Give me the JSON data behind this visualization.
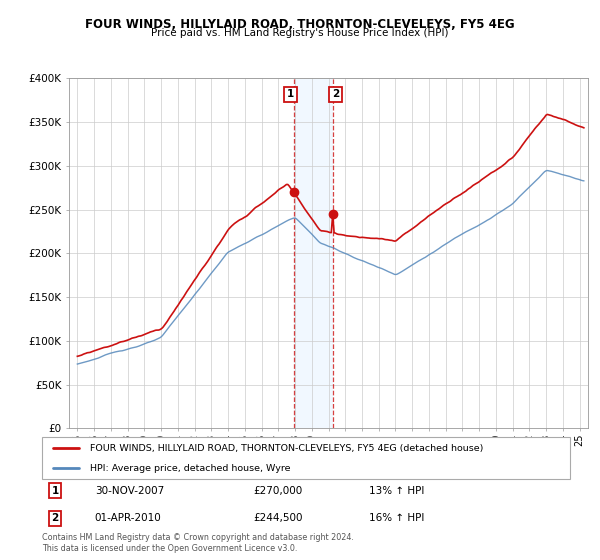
{
  "title": "FOUR WINDS, HILLYLAID ROAD, THORNTON-CLEVELEYS, FY5 4EG",
  "subtitle": "Price paid vs. HM Land Registry's House Price Index (HPI)",
  "legend_line1": "FOUR WINDS, HILLYLAID ROAD, THORNTON-CLEVELEYS, FY5 4EG (detached house)",
  "legend_line2": "HPI: Average price, detached house, Wyre",
  "annotation1_label": "1",
  "annotation1_date": "30-NOV-2007",
  "annotation1_price": "£270,000",
  "annotation1_hpi": "13% ↑ HPI",
  "annotation2_label": "2",
  "annotation2_date": "01-APR-2010",
  "annotation2_price": "£244,500",
  "annotation2_hpi": "16% ↑ HPI",
  "sale1_x": 2007.917,
  "sale1_y": 270000,
  "sale2_x": 2010.25,
  "sale2_y": 244500,
  "hpi_color": "#5588bb",
  "price_color": "#cc1111",
  "shade_color": "#ddeeff",
  "footer": "Contains HM Land Registry data © Crown copyright and database right 2024.\nThis data is licensed under the Open Government Licence v3.0.",
  "ylim": [
    0,
    400000
  ],
  "xlim_start": 1994.5,
  "xlim_end": 2025.5,
  "yticks": [
    0,
    50000,
    100000,
    150000,
    200000,
    250000,
    300000,
    350000,
    400000
  ],
  "ytick_labels": [
    "£0",
    "£50K",
    "£100K",
    "£150K",
    "£200K",
    "£250K",
    "£300K",
    "£350K",
    "£400K"
  ],
  "xtick_years": [
    1995,
    1996,
    1997,
    1998,
    1999,
    2000,
    2001,
    2002,
    2003,
    2004,
    2005,
    2006,
    2007,
    2008,
    2009,
    2010,
    2011,
    2012,
    2013,
    2014,
    2015,
    2016,
    2017,
    2018,
    2019,
    2020,
    2021,
    2022,
    2023,
    2024,
    2025
  ]
}
